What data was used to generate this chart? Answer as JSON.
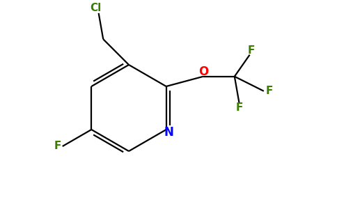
{
  "background_color": "#ffffff",
  "bond_color": "#000000",
  "atom_colors": {
    "N": "#0000ff",
    "O": "#ff0000",
    "F": "#3a7d00",
    "Cl": "#3a7d00"
  },
  "figsize": [
    4.84,
    3.0
  ],
  "dpi": 100,
  "lw": 1.6,
  "fs": 11
}
